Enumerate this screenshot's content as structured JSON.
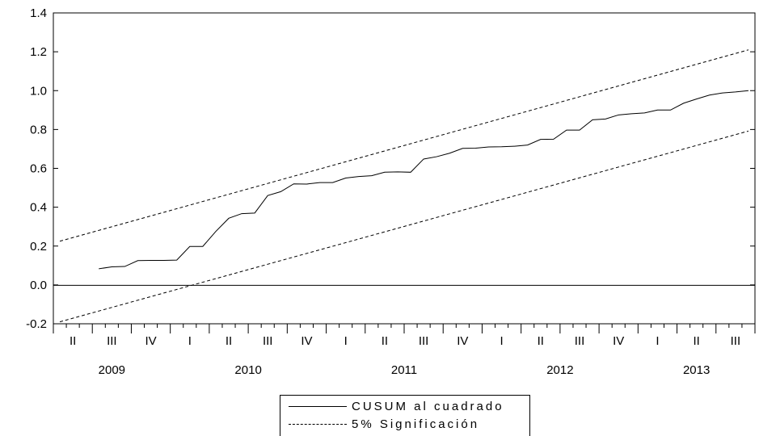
{
  "chart_data": {
    "type": "line",
    "ylim": [
      -0.2,
      1.4
    ],
    "yticks": [
      "-0.2",
      "0.0",
      "0.2",
      "0.4",
      "0.6",
      "0.8",
      "1.0",
      "1.2",
      "1.4"
    ],
    "quarter_labels": [
      "II",
      "III",
      "IV",
      "I",
      "II",
      "III",
      "IV",
      "I",
      "II",
      "III",
      "IV",
      "I",
      "II",
      "III",
      "IV",
      "I",
      "II",
      "III"
    ],
    "year_labels": [
      "2009",
      "2010",
      "2011",
      "2012",
      "2013"
    ],
    "x_start": "2009-04",
    "x_end": "2013-09",
    "zero_line": true,
    "grid": false,
    "legend_position": "bottom",
    "series": [
      {
        "name": "CUSUM al cuadrado",
        "style": "solid",
        "values": [
          0.083,
          0.093,
          0.095,
          0.125,
          0.126,
          0.126,
          0.128,
          0.198,
          0.198,
          0.275,
          0.343,
          0.367,
          0.37,
          0.46,
          0.48,
          0.52,
          0.519,
          0.527,
          0.527,
          0.55,
          0.558,
          0.562,
          0.58,
          0.582,
          0.58,
          0.648,
          0.66,
          0.678,
          0.703,
          0.704,
          0.71,
          0.711,
          0.714,
          0.72,
          0.749,
          0.75,
          0.797,
          0.797,
          0.85,
          0.854,
          0.875,
          0.881,
          0.885,
          0.9,
          0.9,
          0.935,
          0.957,
          0.977,
          0.988,
          0.993,
          1.0
        ]
      },
      {
        "name": "5% Significación",
        "style": "dashed",
        "values": [
          0.225,
          1.21
        ]
      },
      {
        "name": "5% Significación lower",
        "style": "dashed",
        "values": [
          -0.19,
          0.792
        ]
      }
    ]
  }
}
